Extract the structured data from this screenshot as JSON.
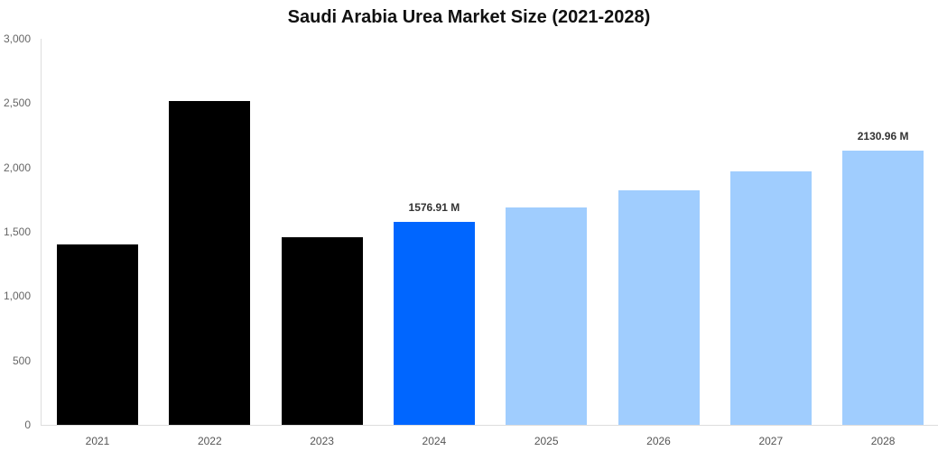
{
  "chart_data": {
    "type": "bar",
    "title": "Saudi Arabia Urea Market Size (2021-2028)",
    "xlabel": "",
    "ylabel": "",
    "categories": [
      "2021",
      "2022",
      "2023",
      "2024",
      "2025",
      "2026",
      "2027",
      "2028"
    ],
    "values": [
      1402,
      2516,
      1458,
      1576.91,
      1689,
      1822,
      1969,
      2130.96
    ],
    "bar_colors": [
      "#000000",
      "#000000",
      "#000000",
      "#0066ff",
      "#a0cdfe",
      "#a0cdfe",
      "#a0cdfe",
      "#a0cdfe"
    ],
    "data_labels": [
      {
        "category": "2024",
        "text": "1576.91 M"
      },
      {
        "category": "2028",
        "text": "2130.96 M"
      }
    ],
    "ylim": [
      0,
      3000
    ],
    "yticks": [
      "0",
      "500",
      "1,000",
      "1,500",
      "2,000",
      "2,500",
      "3,000"
    ],
    "grid": false,
    "legend": null
  }
}
